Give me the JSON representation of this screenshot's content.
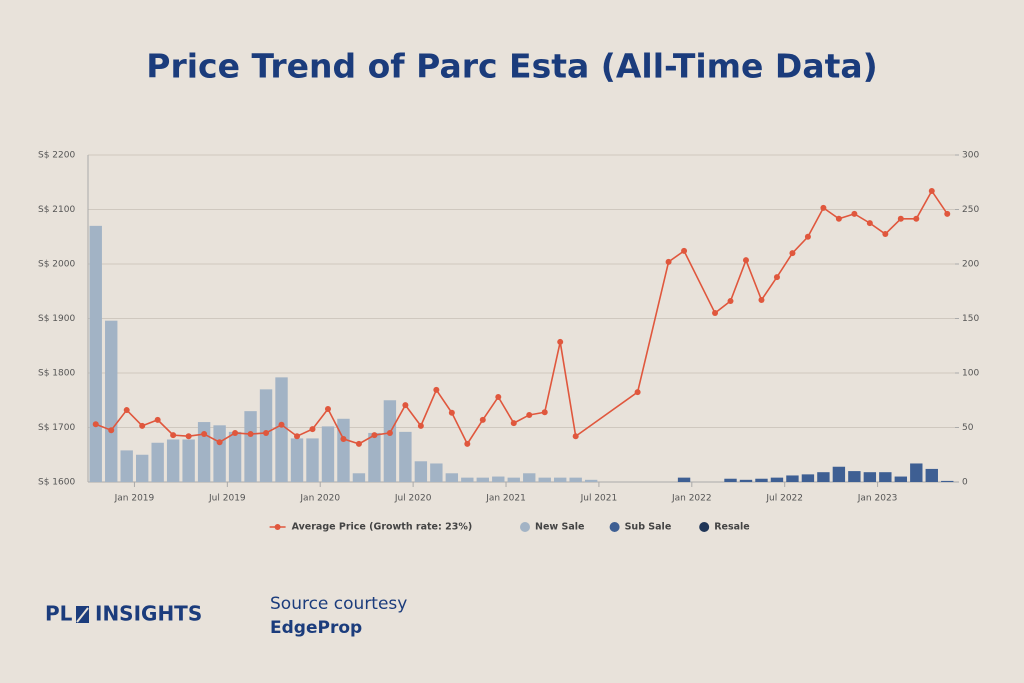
{
  "chart_data": {
    "type": "bar-line",
    "title": "Price Trend of Parc Esta (All-Time Data)",
    "xlim": [
      "2018-10",
      "2023-06"
    ],
    "xticks": [
      {
        "value": "2019-01",
        "label": "Jan 2019"
      },
      {
        "value": "2019-07",
        "label": "Jul 2019"
      },
      {
        "value": "2020-01",
        "label": "Jan 2020"
      },
      {
        "value": "2020-07",
        "label": "Jul 2020"
      },
      {
        "value": "2021-01",
        "label": "Jan 2021"
      },
      {
        "value": "2021-07",
        "label": "Jul 2021"
      },
      {
        "value": "2022-01",
        "label": "Jan 2022"
      },
      {
        "value": "2022-07",
        "label": "Jul 2022"
      },
      {
        "value": "2023-01",
        "label": "Jan 2023"
      }
    ],
    "ylim": [
      1600,
      2200
    ],
    "yticks": [
      {
        "value": 1600,
        "label": "S$ 1600"
      },
      {
        "value": 1700,
        "label": "S$ 1700"
      },
      {
        "value": 1800,
        "label": "S$ 1800"
      },
      {
        "value": 1900,
        "label": "S$ 1900"
      },
      {
        "value": 2000,
        "label": "S$ 2000"
      },
      {
        "value": 2100,
        "label": "S$ 2100"
      },
      {
        "value": 2200,
        "label": "S$ 2200"
      }
    ],
    "y2lim": [
      0,
      300
    ],
    "y2ticks": [
      0,
      50,
      100,
      150,
      200,
      250,
      300
    ],
    "grid": true,
    "legend": "bottom",
    "x": [
      "2018-10",
      "2018-11",
      "2018-12",
      "2019-01",
      "2019-02",
      "2019-03",
      "2019-04",
      "2019-05",
      "2019-06",
      "2019-07",
      "2019-08",
      "2019-09",
      "2019-10",
      "2019-11",
      "2019-12",
      "2020-01",
      "2020-02",
      "2020-03",
      "2020-04",
      "2020-05",
      "2020-06",
      "2020-07",
      "2020-08",
      "2020-09",
      "2020-10",
      "2020-11",
      "2020-12",
      "2021-01",
      "2021-02",
      "2021-03",
      "2021-04",
      "2021-05",
      "2021-06",
      "2021-07",
      "2021-08",
      "2021-09",
      "2021-10",
      "2021-11",
      "2021-12",
      "2022-01",
      "2022-02",
      "2022-03",
      "2022-04",
      "2022-05",
      "2022-06",
      "2022-07",
      "2022-08",
      "2022-09",
      "2022-10",
      "2022-11",
      "2022-12",
      "2023-01",
      "2023-02",
      "2023-03",
      "2023-04",
      "2023-05"
    ],
    "series": [
      {
        "name": "Average Price (Growth rate: 23%)",
        "type": "line",
        "axis": "y",
        "color": "#e0573d",
        "x": [
          "2018-10",
          "2018-11",
          "2018-12",
          "2019-01",
          "2019-02",
          "2019-03",
          "2019-04",
          "2019-05",
          "2019-06",
          "2019-07",
          "2019-08",
          "2019-09",
          "2019-10",
          "2019-11",
          "2019-12",
          "2020-01",
          "2020-02",
          "2020-03",
          "2020-04",
          "2020-05",
          "2020-06",
          "2020-07",
          "2020-08",
          "2020-09",
          "2020-10",
          "2020-11",
          "2020-12",
          "2021-01",
          "2021-02",
          "2021-03",
          "2021-04",
          "2021-05",
          "2021-09",
          "2021-11",
          "2021-12",
          "2022-02",
          "2022-03",
          "2022-04",
          "2022-05",
          "2022-06",
          "2022-07",
          "2022-08",
          "2022-09",
          "2022-10",
          "2022-11",
          "2022-12",
          "2023-01",
          "2023-02",
          "2023-03",
          "2023-04",
          "2023-05"
        ],
        "values": [
          1706,
          1695,
          1732,
          1703,
          1714,
          1686,
          1684,
          1688,
          1673,
          1690,
          1688,
          1690,
          1705,
          1684,
          1697,
          1734,
          1679,
          1670,
          1686,
          1690,
          1741,
          1703,
          1769,
          1727,
          1670,
          1714,
          1756,
          1708,
          1723,
          1728,
          1857,
          1684,
          1765,
          2004,
          2024,
          1910,
          1932,
          2007,
          1934,
          1976,
          2020,
          2050,
          2103,
          2083,
          2092,
          2075,
          2055,
          2083,
          2083,
          2134,
          2092
        ]
      },
      {
        "name": "New Sale",
        "type": "bar",
        "axis": "y2",
        "color": "#a2b3c5",
        "values": [
          235,
          148,
          29,
          25,
          36,
          39,
          39,
          55,
          52,
          46,
          65,
          85,
          96,
          40,
          40,
          51,
          58,
          8,
          45,
          75,
          46,
          19,
          17,
          8,
          4,
          4,
          5,
          4,
          8,
          4,
          4,
          4,
          2,
          0,
          0,
          0,
          0,
          0,
          0,
          0,
          0,
          0,
          0,
          0,
          0,
          0,
          0,
          0,
          0,
          0,
          0,
          0,
          0,
          0,
          0,
          0
        ]
      },
      {
        "name": "Sub Sale",
        "type": "bar",
        "axis": "y2",
        "color": "#3e5f93",
        "values": [
          0,
          0,
          0,
          0,
          0,
          0,
          0,
          0,
          0,
          0,
          0,
          0,
          0,
          0,
          0,
          0,
          0,
          0,
          0,
          0,
          0,
          0,
          0,
          0,
          0,
          0,
          0,
          0,
          0,
          0,
          0,
          0,
          0,
          0,
          0,
          0,
          0,
          0,
          4,
          0,
          0,
          3,
          2,
          3,
          4,
          6,
          7,
          9,
          14,
          10,
          9,
          9,
          5,
          17,
          12,
          1
        ]
      },
      {
        "name": "Resale",
        "type": "bar",
        "axis": "y2",
        "color": "#1f3557",
        "values": [
          0,
          0,
          0,
          0,
          0,
          0,
          0,
          0,
          0,
          0,
          0,
          0,
          0,
          0,
          0,
          0,
          0,
          0,
          0,
          0,
          0,
          0,
          0,
          0,
          0,
          0,
          0,
          0,
          0,
          0,
          0,
          0,
          0,
          0,
          0,
          0,
          0,
          0,
          0,
          0,
          0,
          0,
          0,
          0,
          0,
          0,
          0,
          0,
          0,
          0,
          0,
          0,
          0,
          0,
          0,
          0
        ]
      }
    ]
  },
  "footer": {
    "logo_prefix": "PL",
    "logo": "INSIGHTS",
    "source_label": "Source courtesy",
    "source": "EdgeProp"
  }
}
